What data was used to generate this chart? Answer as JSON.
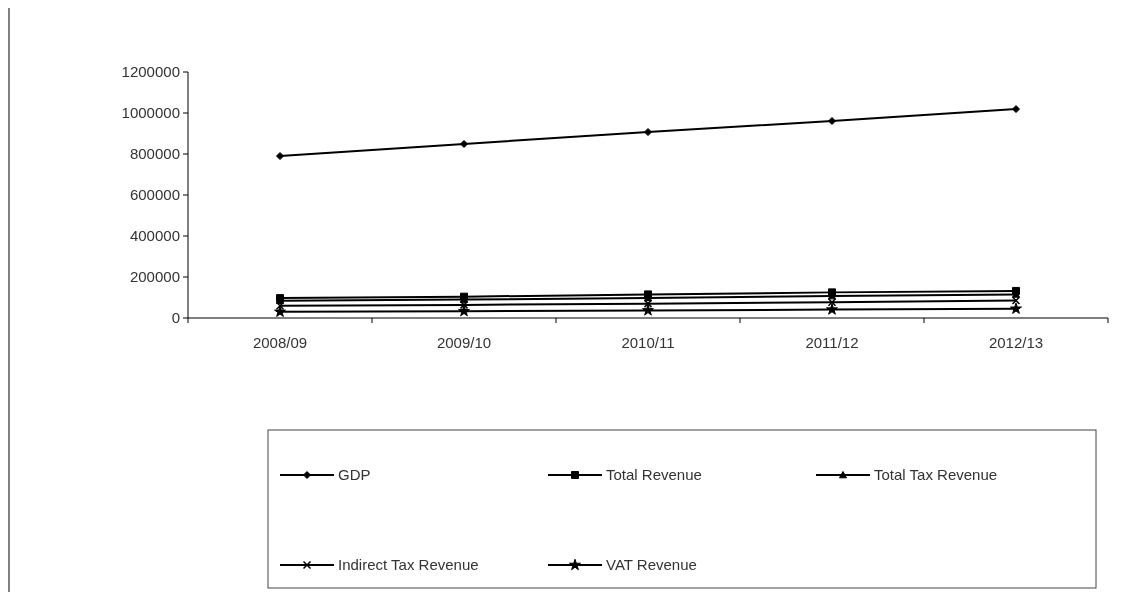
{
  "chart_data": {
    "type": "line",
    "categories": [
      "2008/09",
      "2009/10",
      "2010/11",
      "2011/12",
      "2012/13"
    ],
    "ylim": [
      0,
      1200000
    ],
    "yticks": [
      0,
      200000,
      400000,
      600000,
      800000,
      1000000,
      1200000
    ],
    "grid": false,
    "legend": "bottom",
    "series": [
      {
        "name": "GDP",
        "color": "#000000",
        "marker": "diamond",
        "values": [
          790000,
          849000,
          907000,
          961000,
          1019000
        ]
      },
      {
        "name": "Total Revenue",
        "color": "#000000",
        "marker": "square",
        "values": [
          97000,
          104000,
          115000,
          125000,
          132000
        ]
      },
      {
        "name": "Total Tax Revenue",
        "color": "#000000",
        "marker": "triangle",
        "values": [
          84000,
          90000,
          98000,
          107000,
          115000
        ]
      },
      {
        "name": "Indirect Tax Revenue",
        "color": "#000000",
        "marker": "cross",
        "values": [
          60000,
          64000,
          70000,
          77000,
          85000
        ]
      },
      {
        "name": "VAT Revenue",
        "color": "#000000",
        "marker": "star",
        "values": [
          30000,
          33000,
          37000,
          41000,
          45000
        ]
      }
    ]
  }
}
